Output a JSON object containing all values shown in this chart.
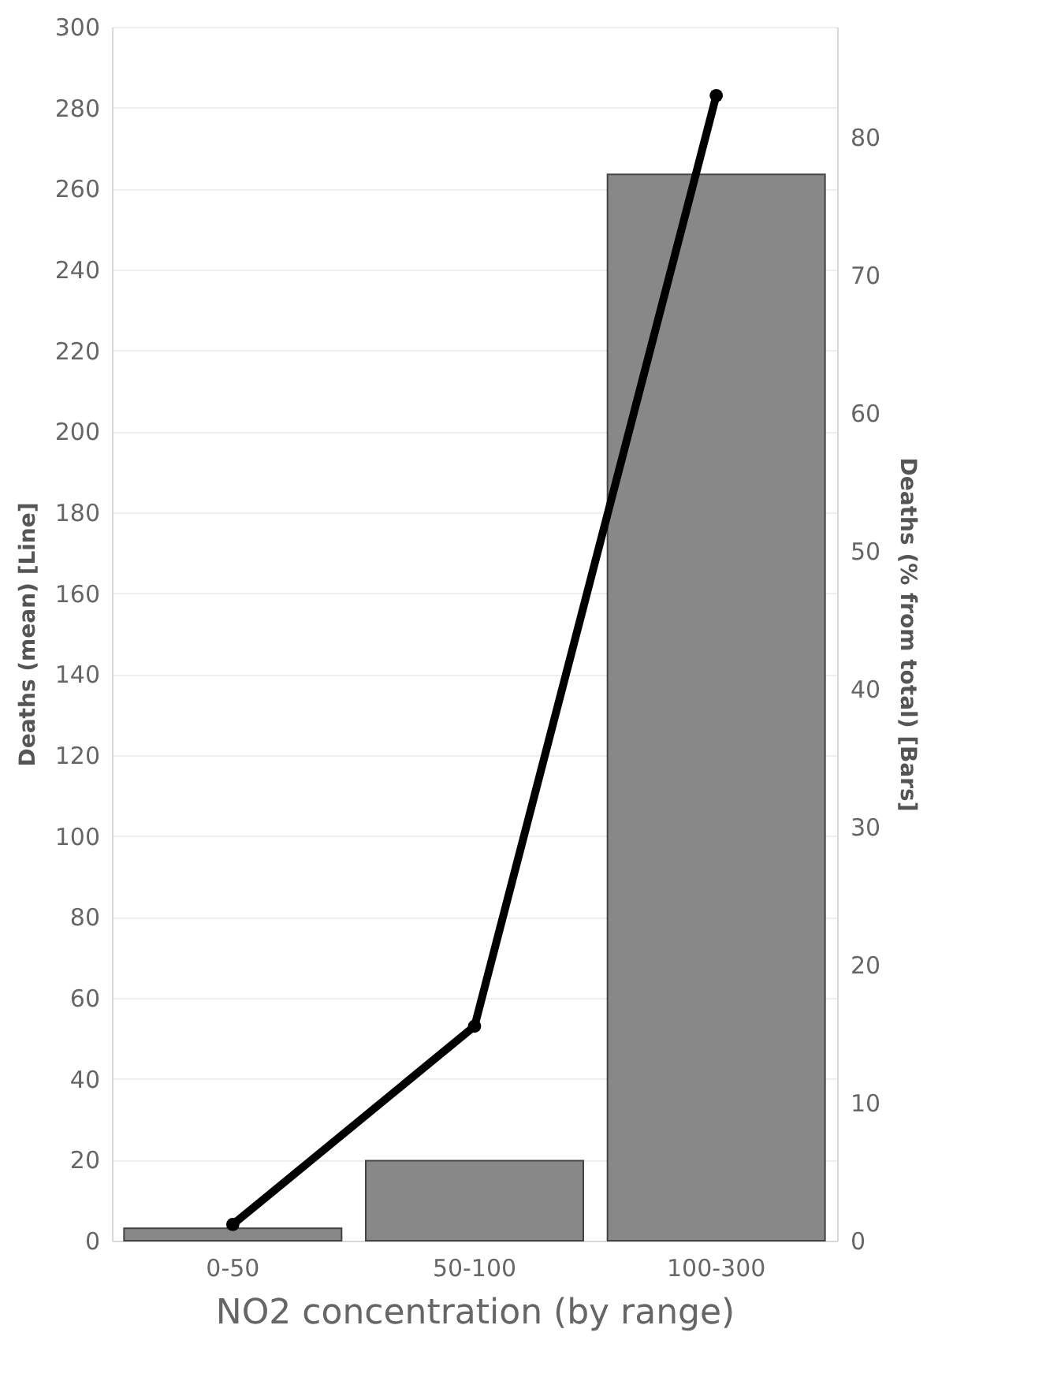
{
  "chart_data": {
    "type": "bar",
    "xlabel": "NO2 concentration (by range)",
    "ylabel": "Deaths (mean) [Line]",
    "y2label": "Deaths (% from total) [Bars]",
    "categories": [
      "0-50",
      "50-100",
      "100-300"
    ],
    "series": [
      {
        "axis": "y2",
        "color": "#888888",
        "values": [
          0.9,
          5.8,
          77.3
        ]
      },
      {
        "type": "line",
        "axis": "y",
        "color": "#000000",
        "values": [
          4,
          53,
          283
        ]
      }
    ],
    "ylim": [
      0,
      300
    ],
    "yticks": [
      0,
      20,
      40,
      60,
      80,
      100,
      120,
      140,
      160,
      180,
      200,
      220,
      240,
      260,
      280,
      300
    ],
    "y2lim": [
      0,
      88
    ],
    "y2ticks": [
      0,
      10,
      20,
      30,
      40,
      50,
      60,
      70,
      80
    ],
    "grid": "y",
    "marker": "circle",
    "line_style": "solid"
  }
}
